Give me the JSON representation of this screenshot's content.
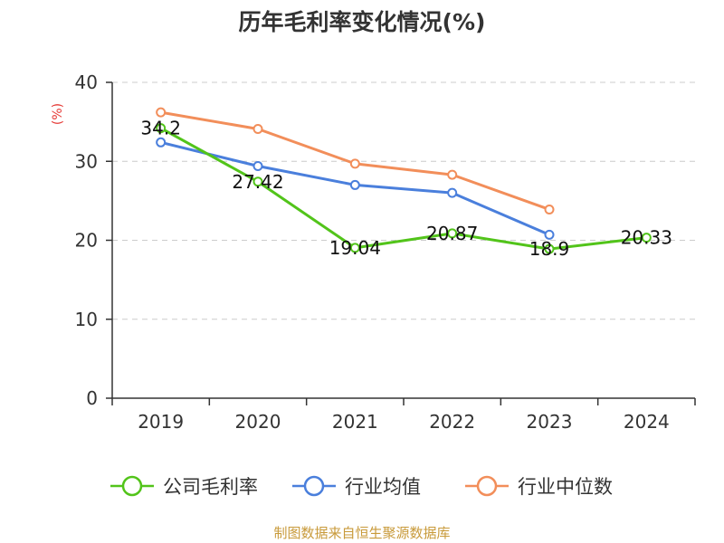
{
  "chart_data": {
    "type": "line",
    "title": "历年毛利率变化情况(%)",
    "ylabel": "(%)",
    "xlabel": "",
    "categories": [
      "2019",
      "2020",
      "2021",
      "2022",
      "2023",
      "2024"
    ],
    "ylim": [
      0,
      40
    ],
    "yticks": [
      "0",
      "10",
      "20",
      "30",
      "40"
    ],
    "grid": true,
    "legend_position": "bottom",
    "series": [
      {
        "name": "公司毛利率",
        "color": "#52c41a",
        "values": [
          34.2,
          27.42,
          19.04,
          20.87,
          18.9,
          20.33
        ],
        "labels": [
          "34.2",
          "27.42",
          "19.04",
          "20.87",
          "18.9",
          "20.33"
        ]
      },
      {
        "name": "行业均值",
        "color": "#4a7fdc",
        "values": [
          32.4,
          29.4,
          27.0,
          26.0,
          20.7,
          null
        ]
      },
      {
        "name": "行业中位数",
        "color": "#f28e5a",
        "values": [
          36.2,
          34.1,
          29.7,
          28.3,
          23.9,
          null
        ]
      }
    ],
    "source": "制图数据来自恒生聚源数据库"
  }
}
